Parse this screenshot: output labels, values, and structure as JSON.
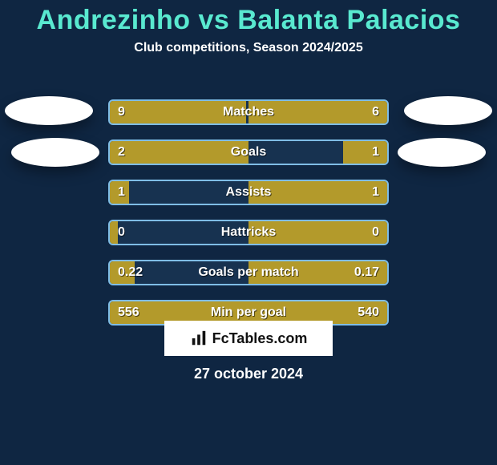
{
  "title": "Andrezinho vs Balanta Palacios",
  "subtitle": "Club competitions, Season 2024/2025",
  "date": "27 october 2024",
  "brand": "FcTables.com",
  "colors": {
    "background": "#0f2642",
    "title": "#59e9d0",
    "text": "#ffffff",
    "bar_border": "#7fbde6",
    "bar_fill": "#b39a2b",
    "bar_bg": "#173250",
    "brand_bg": "#ffffff",
    "brand_text": "#111111"
  },
  "rows": [
    {
      "metric": "Matches",
      "left": "9",
      "right": "6",
      "left_pct": 49,
      "right_pct": 50
    },
    {
      "metric": "Goals",
      "left": "2",
      "right": "1",
      "left_pct": 50,
      "right_pct": 16
    },
    {
      "metric": "Assists",
      "left": "1",
      "right": "1",
      "left_pct": 7,
      "right_pct": 50
    },
    {
      "metric": "Hattricks",
      "left": "0",
      "right": "0",
      "left_pct": 3,
      "right_pct": 50
    },
    {
      "metric": "Goals per match",
      "left": "0.22",
      "right": "0.17",
      "left_pct": 9,
      "right_pct": 50
    },
    {
      "metric": "Min per goal",
      "left": "556",
      "right": "540",
      "left_pct": 50,
      "right_pct": 50
    }
  ]
}
